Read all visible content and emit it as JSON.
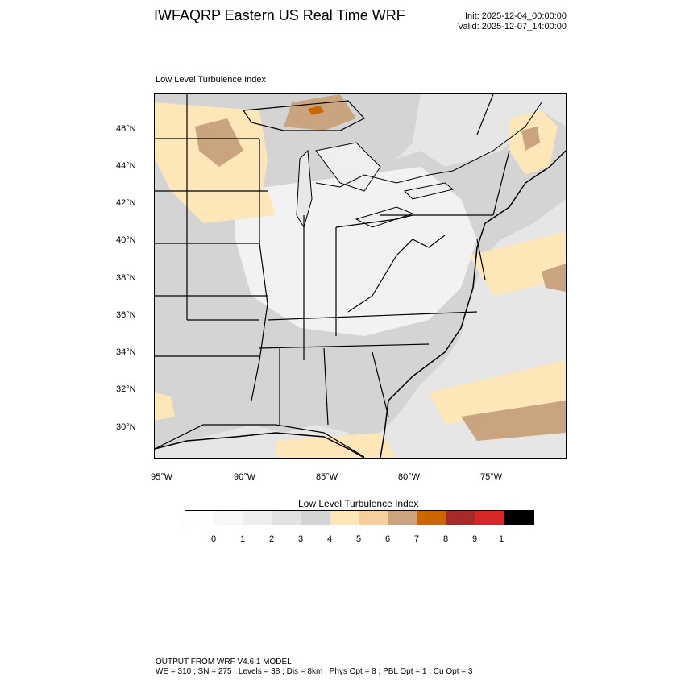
{
  "header": {
    "title": "IWFAQRP Eastern US Real Time WRF",
    "init": "Init: 2025-12-04_00:00:00",
    "valid": "Valid: 2025-12-07_14:00:00"
  },
  "map": {
    "subtitle": "Low Level Turbulence Index",
    "lat_labels": [
      "46°N",
      "44°N",
      "42°N",
      "40°N",
      "38°N",
      "36°N",
      "34°N",
      "32°N",
      "30°N"
    ],
    "lon_labels": [
      "95°W",
      "90°W",
      "85°W",
      "80°W",
      "75°W"
    ],
    "colors": {
      "land_base": "#d9d9d9",
      "ocean_light": "#e8e8e8",
      "low_index": "#f5f5f5",
      "mid_index": "#fde6b8",
      "high_index": "#c9a47e",
      "peak_index": "#cc6600"
    }
  },
  "colorbar": {
    "title": "Low Level Turbulence Index",
    "colors": [
      "#ffffff",
      "#f7f7f7",
      "#eeeeee",
      "#e2e2e2",
      "#d4d4d4",
      "#fde6b8",
      "#f5cf9e",
      "#c9a47e",
      "#cc6600",
      "#a52a2a",
      "#d62728",
      "#000000"
    ],
    "ticks": [
      ".0",
      ".1",
      ".2",
      ".3",
      ".4",
      ".5",
      ".6",
      ".7",
      ".8",
      ".9",
      "1"
    ]
  },
  "footer": {
    "line1": "OUTPUT FROM WRF V4.6.1 MODEL",
    "line2": "WE = 310 ; SN = 275 ; Levels = 38 ; Dis = 8km ; Phys Opt = 8 ; PBL Opt = 1 ; Cu Opt = 3"
  }
}
